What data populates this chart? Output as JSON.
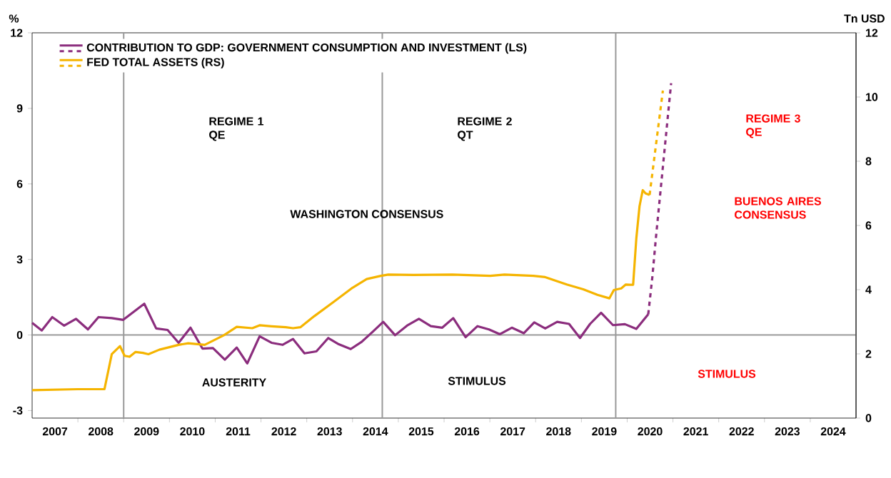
{
  "chart_data": {
    "type": "line",
    "ylabel": "%",
    "y2label": "Tn USD",
    "x": [
      2007.0,
      2007.21,
      2007.44,
      2007.7,
      2007.96,
      2008.22,
      2008.45,
      2008.74,
      2008.99,
      2009.45,
      2009.71,
      2009.96,
      2010.2,
      2010.46,
      2010.72,
      2010.95,
      2011.21,
      2011.47,
      2011.7,
      2011.97,
      2012.23,
      2012.47,
      2012.7,
      2012.95,
      2013.21,
      2013.47,
      2013.7,
      2013.96,
      2014.2,
      2014.46,
      2014.67,
      2014.93,
      2015.19,
      2015.45,
      2015.71,
      2015.96,
      2016.2,
      2016.47,
      2016.73,
      2016.98,
      2017.22,
      2017.48,
      2017.74,
      2017.97,
      2018.21,
      2018.47,
      2018.73,
      2018.97,
      2019.19,
      2019.43,
      2019.69,
      2019.95,
      2020.2,
      2020.46
    ],
    "series": [
      {
        "name": "CONTRIBUTION TO GDP: GOVERNMENT CONSUMPTION AND INVESTMENT (LS)",
        "color": "#8b2d7d",
        "line_style": "solid",
        "values": [
          0.48,
          0.18,
          0.71,
          0.37,
          0.64,
          0.22,
          0.71,
          0.67,
          0.6,
          1.24,
          0.26,
          0.2,
          -0.31,
          0.29,
          -0.54,
          -0.52,
          -0.98,
          -0.5,
          -1.13,
          -0.05,
          -0.31,
          -0.39,
          -0.16,
          -0.73,
          -0.65,
          -0.12,
          -0.37,
          -0.56,
          -0.27,
          0.16,
          0.52,
          -0.01,
          0.37,
          0.64,
          0.35,
          0.29,
          0.67,
          -0.09,
          0.35,
          0.22,
          0.03,
          0.29,
          0.07,
          0.5,
          0.26,
          0.52,
          0.44,
          -0.12,
          0.44,
          0.88,
          0.39,
          0.43,
          0.24,
          0.82
        ]
      },
      {
        "color": "#8b2d7d",
        "line_style": "dashed",
        "x": [
          2020.46,
          2020.55,
          2020.63,
          2020.96
        ],
        "values": [
          0.82,
          2.3,
          3.9,
          10.0
        ]
      },
      {
        "name": "FED TOTAL ASSETS (RS)",
        "color": "#f5b400",
        "line_style": "solid",
        "axis": "y2",
        "x": [
          2007.0,
          2008.0,
          2008.58,
          2008.74,
          2008.92,
          2009.02,
          2009.13,
          2009.26,
          2009.42,
          2009.54,
          2009.78,
          2010.2,
          2010.41,
          2010.77,
          2011.19,
          2011.47,
          2011.81,
          2011.97,
          2012.23,
          2012.54,
          2012.7,
          2012.86,
          2013.16,
          2013.58,
          2014.0,
          2014.31,
          2014.62,
          2014.78,
          2015.33,
          2016.18,
          2017.01,
          2017.32,
          2017.95,
          2018.21,
          2018.68,
          2019.04,
          2019.35,
          2019.61,
          2019.71,
          2019.87,
          2019.97,
          2020.13,
          2020.2,
          2020.27,
          2020.34,
          2020.4,
          2020.49
        ],
        "values": [
          0.87,
          0.9,
          0.9,
          1.99,
          2.24,
          1.94,
          1.91,
          2.06,
          2.03,
          1.99,
          2.13,
          2.28,
          2.33,
          2.28,
          2.58,
          2.84,
          2.8,
          2.89,
          2.86,
          2.83,
          2.8,
          2.83,
          3.17,
          3.61,
          4.06,
          4.33,
          4.43,
          4.47,
          4.46,
          4.47,
          4.43,
          4.47,
          4.43,
          4.39,
          4.16,
          4.01,
          3.84,
          3.73,
          3.99,
          4.04,
          4.16,
          4.15,
          5.6,
          6.6,
          7.1,
          7.0,
          6.95
        ]
      },
      {
        "color": "#f5b400",
        "line_style": "dashed",
        "axis": "y2",
        "x": [
          2020.49,
          2020.78
        ],
        "values": [
          6.95,
          10.2
        ]
      }
    ],
    "xlim": [
      2007,
      2025
    ],
    "xticks": [
      {
        "value": 2007.5,
        "label": "2007"
      },
      {
        "value": 2008.5,
        "label": "2008"
      },
      {
        "value": 2009.5,
        "label": "2009"
      },
      {
        "value": 2010.5,
        "label": "2010"
      },
      {
        "value": 2011.5,
        "label": "2011"
      },
      {
        "value": 2012.5,
        "label": "2012"
      },
      {
        "value": 2013.5,
        "label": "2013"
      },
      {
        "value": 2014.5,
        "label": "2014"
      },
      {
        "value": 2015.5,
        "label": "2015"
      },
      {
        "value": 2016.5,
        "label": "2016"
      },
      {
        "value": 2017.5,
        "label": "2017"
      },
      {
        "value": 2018.5,
        "label": "2018"
      },
      {
        "value": 2019.5,
        "label": "2019"
      },
      {
        "value": 2020.5,
        "label": "2020"
      },
      {
        "value": 2021.5,
        "label": "2021"
      },
      {
        "value": 2022.5,
        "label": "2022"
      },
      {
        "value": 2023.5,
        "label": "2023"
      },
      {
        "value": 2024.5,
        "label": "2024"
      },
      {
        "value": 2008,
        "label": null
      },
      {
        "value": 2009,
        "label": null
      },
      {
        "value": 2010,
        "label": null
      },
      {
        "value": 2011,
        "label": null
      },
      {
        "value": 2012,
        "label": null
      },
      {
        "value": 2013,
        "label": null
      },
      {
        "value": 2014,
        "label": null
      },
      {
        "value": 2015,
        "label": null
      },
      {
        "value": 2016,
        "label": null
      },
      {
        "value": 2017,
        "label": null
      },
      {
        "value": 2018,
        "label": null
      },
      {
        "value": 2019,
        "label": null
      },
      {
        "value": 2020,
        "label": null
      },
      {
        "value": 2021,
        "label": null
      },
      {
        "value": 2022,
        "label": null
      },
      {
        "value": 2023,
        "label": null
      },
      {
        "value": 2024,
        "label": null
      }
    ],
    "ylim": [
      -3.3,
      12
    ],
    "yticks": [
      -3,
      0,
      3,
      6,
      9,
      12
    ],
    "y2lim": [
      0,
      12
    ],
    "y2ticks": [
      0,
      2,
      4,
      6,
      8,
      10,
      12
    ],
    "ref_lines": [
      {
        "axis": "y",
        "value": 0,
        "color": "#999999"
      },
      {
        "axis": "x",
        "value": 2009,
        "color": "#999999"
      },
      {
        "axis": "x",
        "value": 2014.65,
        "color": "#999999"
      },
      {
        "axis": "x",
        "value": 2019.75,
        "color": "#999999"
      }
    ],
    "legend": "top left",
    "annotations": [
      "REGIME 1 QE",
      "REGIME 2 QT",
      "REGIME 3 QE",
      "WASHINGTON CONSENSUS",
      "BUENOS AIRES CONSENSUS",
      "AUSTERITY",
      "STIMULUS",
      "STIMULUS"
    ]
  }
}
